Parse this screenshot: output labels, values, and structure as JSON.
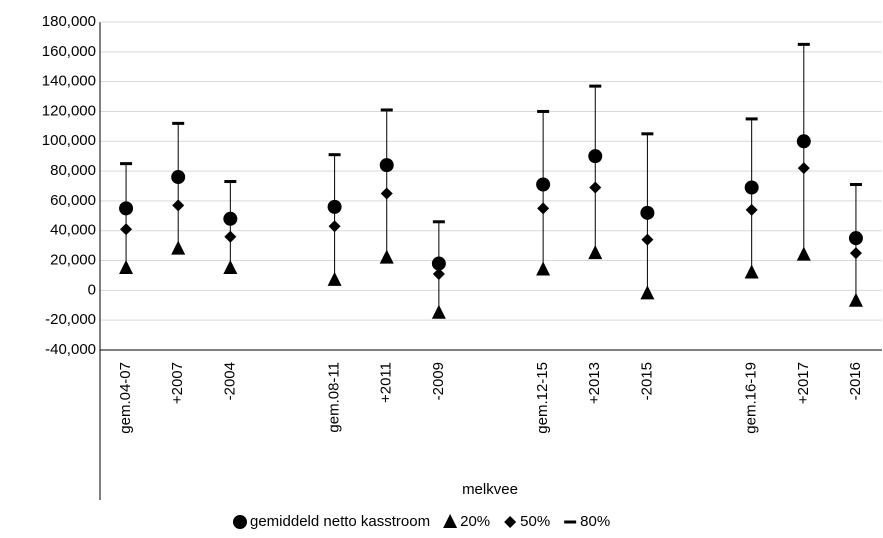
{
  "chart_data": {
    "type": "range",
    "x_label": "melkvee",
    "categories": [
      "gem.04-07",
      "+2007",
      "-2004",
      null,
      "gem.08-11",
      "+2011",
      "-2009",
      null,
      "gem.12-15",
      "+2013",
      "-2015",
      null,
      "gem.16-19",
      "+2017",
      "-2016"
    ],
    "series": [
      {
        "name": "gemiddeld netto kasstroom",
        "marker": "circle",
        "color": "#000000",
        "values": [
          55000,
          76000,
          48000,
          null,
          56000,
          84000,
          18000,
          null,
          71000,
          90000,
          52000,
          null,
          69000,
          100000,
          35000
        ]
      },
      {
        "name": "20%",
        "marker": "triangle",
        "color": "#000000",
        "values": [
          15000,
          28000,
          15000,
          null,
          7000,
          22000,
          -15000,
          null,
          14000,
          25000,
          -2000,
          null,
          12000,
          24000,
          -7000
        ]
      },
      {
        "name": "50%",
        "marker": "diamond",
        "color": "#000000",
        "values": [
          41000,
          57000,
          36000,
          null,
          43000,
          65000,
          11000,
          null,
          55000,
          69000,
          34000,
          null,
          54000,
          82000,
          25000
        ]
      },
      {
        "name": "80%",
        "marker": "dash",
        "color": "#000000",
        "values": [
          85000,
          112000,
          73000,
          null,
          91000,
          121000,
          46000,
          null,
          120000,
          137000,
          105000,
          null,
          115000,
          165000,
          71000
        ]
      }
    ],
    "ylim": [
      -40000,
      180000
    ],
    "yticks": [
      {
        "value": -40000,
        "label": "-40,000"
      },
      {
        "value": -20000,
        "label": "-20,000"
      },
      0,
      {
        "value": 20000,
        "label": "20,000"
      },
      {
        "value": 40000,
        "label": "40,000"
      },
      {
        "value": 60000,
        "label": "60,000"
      },
      {
        "value": 80000,
        "label": "80,000"
      },
      {
        "value": 100000,
        "label": "100,000"
      },
      {
        "value": 120000,
        "label": "120,000"
      },
      {
        "value": 140000,
        "label": "140,000"
      },
      {
        "value": 160000,
        "label": "160,000"
      },
      {
        "value": 180000,
        "label": "180,000"
      }
    ],
    "grid": true
  }
}
